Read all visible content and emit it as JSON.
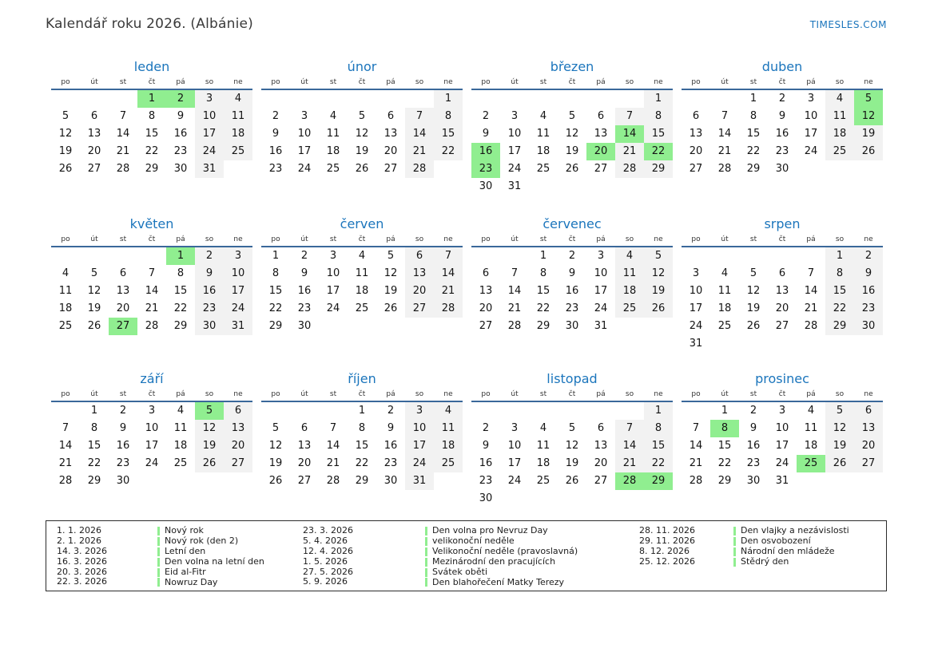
{
  "header": {
    "title": "Kalendář roku 2026. (Albánie)",
    "site": "TIMESLES.COM"
  },
  "day_headers": [
    "po",
    "út",
    "st",
    "čt",
    "pá",
    "so",
    "ne"
  ],
  "months": [
    {
      "name": "leden",
      "weeks": [
        [
          null,
          null,
          null,
          1,
          2,
          3,
          4
        ],
        [
          5,
          6,
          7,
          8,
          9,
          10,
          11
        ],
        [
          12,
          13,
          14,
          15,
          16,
          17,
          18
        ],
        [
          19,
          20,
          21,
          22,
          23,
          24,
          25
        ],
        [
          26,
          27,
          28,
          29,
          30,
          31,
          null
        ]
      ],
      "holidays": [
        1,
        2
      ]
    },
    {
      "name": "únor",
      "weeks": [
        [
          null,
          null,
          null,
          null,
          null,
          null,
          1
        ],
        [
          2,
          3,
          4,
          5,
          6,
          7,
          8
        ],
        [
          9,
          10,
          11,
          12,
          13,
          14,
          15
        ],
        [
          16,
          17,
          18,
          19,
          20,
          21,
          22
        ],
        [
          23,
          24,
          25,
          26,
          27,
          28,
          null
        ]
      ],
      "holidays": []
    },
    {
      "name": "březen",
      "weeks": [
        [
          null,
          null,
          null,
          null,
          null,
          null,
          1
        ],
        [
          2,
          3,
          4,
          5,
          6,
          7,
          8
        ],
        [
          9,
          10,
          11,
          12,
          13,
          14,
          15
        ],
        [
          16,
          17,
          18,
          19,
          20,
          21,
          22
        ],
        [
          23,
          24,
          25,
          26,
          27,
          28,
          29
        ],
        [
          30,
          31,
          null,
          null,
          null,
          null,
          null
        ]
      ],
      "holidays": [
        14,
        16,
        20,
        22,
        23
      ]
    },
    {
      "name": "duben",
      "weeks": [
        [
          null,
          null,
          1,
          2,
          3,
          4,
          5
        ],
        [
          6,
          7,
          8,
          9,
          10,
          11,
          12
        ],
        [
          13,
          14,
          15,
          16,
          17,
          18,
          19
        ],
        [
          20,
          21,
          22,
          23,
          24,
          25,
          26
        ],
        [
          27,
          28,
          29,
          30,
          null,
          null,
          null
        ]
      ],
      "holidays": [
        5,
        12
      ]
    },
    {
      "name": "květen",
      "weeks": [
        [
          null,
          null,
          null,
          null,
          1,
          2,
          3
        ],
        [
          4,
          5,
          6,
          7,
          8,
          9,
          10
        ],
        [
          11,
          12,
          13,
          14,
          15,
          16,
          17
        ],
        [
          18,
          19,
          20,
          21,
          22,
          23,
          24
        ],
        [
          25,
          26,
          27,
          28,
          29,
          30,
          31
        ]
      ],
      "holidays": [
        1,
        27
      ]
    },
    {
      "name": "červen",
      "weeks": [
        [
          1,
          2,
          3,
          4,
          5,
          6,
          7
        ],
        [
          8,
          9,
          10,
          11,
          12,
          13,
          14
        ],
        [
          15,
          16,
          17,
          18,
          19,
          20,
          21
        ],
        [
          22,
          23,
          24,
          25,
          26,
          27,
          28
        ],
        [
          29,
          30,
          null,
          null,
          null,
          null,
          null
        ]
      ],
      "holidays": []
    },
    {
      "name": "červenec",
      "weeks": [
        [
          null,
          null,
          1,
          2,
          3,
          4,
          5
        ],
        [
          6,
          7,
          8,
          9,
          10,
          11,
          12
        ],
        [
          13,
          14,
          15,
          16,
          17,
          18,
          19
        ],
        [
          20,
          21,
          22,
          23,
          24,
          25,
          26
        ],
        [
          27,
          28,
          29,
          30,
          31,
          null,
          null
        ]
      ],
      "holidays": []
    },
    {
      "name": "srpen",
      "weeks": [
        [
          null,
          null,
          null,
          null,
          null,
          1,
          2
        ],
        [
          3,
          4,
          5,
          6,
          7,
          8,
          9
        ],
        [
          10,
          11,
          12,
          13,
          14,
          15,
          16
        ],
        [
          17,
          18,
          19,
          20,
          21,
          22,
          23
        ],
        [
          24,
          25,
          26,
          27,
          28,
          29,
          30
        ],
        [
          31,
          null,
          null,
          null,
          null,
          null,
          null
        ]
      ],
      "holidays": []
    },
    {
      "name": "září",
      "weeks": [
        [
          null,
          1,
          2,
          3,
          4,
          5,
          6
        ],
        [
          7,
          8,
          9,
          10,
          11,
          12,
          13
        ],
        [
          14,
          15,
          16,
          17,
          18,
          19,
          20
        ],
        [
          21,
          22,
          23,
          24,
          25,
          26,
          27
        ],
        [
          28,
          29,
          30,
          null,
          null,
          null,
          null
        ]
      ],
      "holidays": [
        5
      ]
    },
    {
      "name": "říjen",
      "weeks": [
        [
          null,
          null,
          null,
          1,
          2,
          3,
          4
        ],
        [
          5,
          6,
          7,
          8,
          9,
          10,
          11
        ],
        [
          12,
          13,
          14,
          15,
          16,
          17,
          18
        ],
        [
          19,
          20,
          21,
          22,
          23,
          24,
          25
        ],
        [
          26,
          27,
          28,
          29,
          30,
          31,
          null
        ]
      ],
      "holidays": []
    },
    {
      "name": "listopad",
      "weeks": [
        [
          null,
          null,
          null,
          null,
          null,
          null,
          1
        ],
        [
          2,
          3,
          4,
          5,
          6,
          7,
          8
        ],
        [
          9,
          10,
          11,
          12,
          13,
          14,
          15
        ],
        [
          16,
          17,
          18,
          19,
          20,
          21,
          22
        ],
        [
          23,
          24,
          25,
          26,
          27,
          28,
          29
        ],
        [
          30,
          null,
          null,
          null,
          null,
          null,
          null
        ]
      ],
      "holidays": [
        28,
        29
      ]
    },
    {
      "name": "prosinec",
      "weeks": [
        [
          null,
          1,
          2,
          3,
          4,
          5,
          6
        ],
        [
          7,
          8,
          9,
          10,
          11,
          12,
          13
        ],
        [
          14,
          15,
          16,
          17,
          18,
          19,
          20
        ],
        [
          21,
          22,
          23,
          24,
          25,
          26,
          27
        ],
        [
          28,
          29,
          30,
          31,
          null,
          null,
          null
        ]
      ],
      "holidays": [
        8,
        25
      ]
    }
  ],
  "legend": {
    "columns": [
      [
        {
          "date": "1. 1. 2026",
          "label": "Nový rok"
        },
        {
          "date": "2. 1. 2026",
          "label": "Nový rok (den 2)"
        },
        {
          "date": "14. 3. 2026",
          "label": "Letní den"
        },
        {
          "date": "16. 3. 2026",
          "label": "Den volna na letní den"
        },
        {
          "date": "20. 3. 2026",
          "label": "Eid al-Fitr"
        },
        {
          "date": "22. 3. 2026",
          "label": "Nowruz Day"
        }
      ],
      [
        {
          "date": "23. 3. 2026",
          "label": "Den volna pro Nevruz Day"
        },
        {
          "date": "5. 4. 2026",
          "label": "velikonoční neděle"
        },
        {
          "date": "12. 4. 2026",
          "label": "Velikonoční neděle (pravoslavná)"
        },
        {
          "date": "1. 5. 2026",
          "label": "Mezinárodní den pracujících"
        },
        {
          "date": "27. 5. 2026",
          "label": "Svátek oběti"
        },
        {
          "date": "5. 9. 2026",
          "label": "Den blahořečení Matky Terezy"
        }
      ],
      [
        {
          "date": "28. 11. 2026",
          "label": "Den vlajky a nezávislosti"
        },
        {
          "date": "29. 11. 2026",
          "label": "Den osvobození"
        },
        {
          "date": "8. 12. 2026",
          "label": "Národní den mládeže"
        },
        {
          "date": "25. 12. 2026",
          "label": "Štědrý den"
        }
      ]
    ]
  },
  "colors": {
    "accent_blue": "#1b75bc",
    "header_line_blue": "#3a689a",
    "holiday_green": "#90ee90",
    "weekend_gray": "#f2f2f2"
  }
}
